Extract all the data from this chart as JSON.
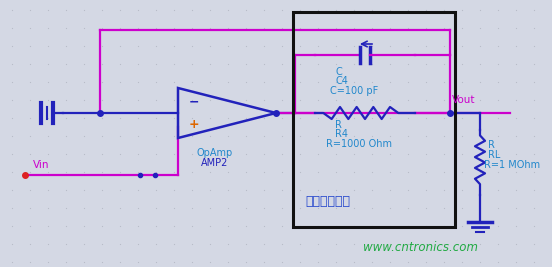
{
  "bg_color": "#d4d8e4",
  "dot_color": "#b8bcc8",
  "wire_blue": "#2222bb",
  "wire_mag": "#cc00cc",
  "text_mag": "#cc00cc",
  "text_cyan": "#2288cc",
  "text_blue": "#2244cc",
  "text_green": "#22aa44",
  "box_color": "#111111",
  "watermark": "www.cntronics.com",
  "label_Vin": "Vin",
  "label_Vout": "Vout",
  "label_opamp_line1": "OpAmp",
  "label_opamp_line2": "AMP2",
  "label_cap_C": "C",
  "label_cap_C4": "C4",
  "label_cap_val": "C=100 pF",
  "label_R_R": "R",
  "label_R_R4": "R4",
  "label_R_val": "R=1000 Ohm",
  "label_RL_R": "R",
  "label_RL_RL": "RL",
  "label_RL_val": "R=1 MOhm",
  "label_box": "脉冲增强电路",
  "figsize": [
    5.52,
    2.67
  ],
  "dpi": 100
}
